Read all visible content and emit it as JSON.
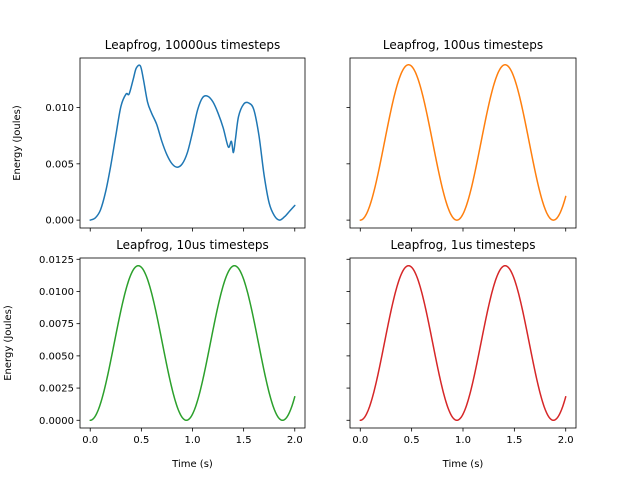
{
  "figure": {
    "background": "#ffffff"
  },
  "chart_data": [
    {
      "type": "line",
      "title": "Leapfrog, 10000us timesteps",
      "xlabel": "",
      "ylabel": "Energy (Joules)",
      "xlim": [
        -0.1,
        2.1
      ],
      "ylim": [
        -0.0007,
        0.0144
      ],
      "xticks": [
        0.0,
        0.5,
        1.0,
        1.5,
        2.0
      ],
      "xtick_labels": [],
      "yticks": [
        0.0,
        0.005,
        0.01
      ],
      "ytick_labels": [
        "0.000",
        "0.005",
        "0.010"
      ],
      "color": "#1f77b4",
      "x": [
        0.0,
        0.05,
        0.1,
        0.15,
        0.2,
        0.25,
        0.3,
        0.35,
        0.38,
        0.42,
        0.45,
        0.49,
        0.52,
        0.56,
        0.6,
        0.65,
        0.7,
        0.75,
        0.8,
        0.85,
        0.9,
        0.95,
        1.0,
        1.05,
        1.1,
        1.15,
        1.2,
        1.25,
        1.3,
        1.35,
        1.38,
        1.4,
        1.42,
        1.45,
        1.5,
        1.55,
        1.6,
        1.65,
        1.7,
        1.75,
        1.8,
        1.85,
        1.9,
        1.95,
        2.0
      ],
      "y": [
        0.0,
        0.0002,
        0.0009,
        0.0025,
        0.0048,
        0.0075,
        0.0101,
        0.0112,
        0.0112,
        0.0125,
        0.0135,
        0.0137,
        0.0125,
        0.0105,
        0.0095,
        0.0085,
        0.007,
        0.0058,
        0.005,
        0.0047,
        0.005,
        0.006,
        0.0078,
        0.0098,
        0.0109,
        0.011,
        0.0105,
        0.0095,
        0.0082,
        0.0065,
        0.007,
        0.006,
        0.0072,
        0.0092,
        0.0103,
        0.0104,
        0.0098,
        0.0075,
        0.004,
        0.0015,
        0.0004,
        0.0,
        0.0003,
        0.0008,
        0.0013
      ]
    },
    {
      "type": "line",
      "title": "Leapfrog, 100us timesteps",
      "xlabel": "",
      "ylabel": "",
      "xlim": [
        -0.1,
        2.1
      ],
      "ylim": [
        -0.0007,
        0.0144
      ],
      "xticks": [
        0.0,
        0.5,
        1.0,
        1.5,
        2.0
      ],
      "xtick_labels": [],
      "yticks": [
        0.0,
        0.005,
        0.01
      ],
      "ytick_labels": [],
      "color": "#ff7f0e",
      "amplitude": 0.0138,
      "period": 0.94,
      "x_end": 2.0
    },
    {
      "type": "line",
      "title": "Leapfrog, 10us timesteps",
      "xlabel": "Time (s)",
      "ylabel": "Energy (Joules)",
      "xlim": [
        -0.1,
        2.1
      ],
      "ylim": [
        -0.0006,
        0.0126
      ],
      "xticks": [
        0.0,
        0.5,
        1.0,
        1.5,
        2.0
      ],
      "xtick_labels": [
        "0.0",
        "0.5",
        "1.0",
        "1.5",
        "2.0"
      ],
      "yticks": [
        0.0,
        0.0025,
        0.005,
        0.0075,
        0.01,
        0.0125
      ],
      "ytick_labels": [
        "0.0000",
        "0.0025",
        "0.0050",
        "0.0075",
        "0.0100",
        "0.0125"
      ],
      "color": "#2ca02c",
      "amplitude": 0.012,
      "period": 0.94,
      "x_end": 2.0
    },
    {
      "type": "line",
      "title": "Leapfrog, 1us timesteps",
      "xlabel": "Time (s)",
      "ylabel": "",
      "xlim": [
        -0.1,
        2.1
      ],
      "ylim": [
        -0.0006,
        0.0126
      ],
      "xticks": [
        0.0,
        0.5,
        1.0,
        1.5,
        2.0
      ],
      "xtick_labels": [
        "0.0",
        "0.5",
        "1.0",
        "1.5",
        "2.0"
      ],
      "yticks": [
        0.0,
        0.0025,
        0.005,
        0.0075,
        0.01,
        0.0125
      ],
      "ytick_labels": [],
      "color": "#d62728",
      "amplitude": 0.012,
      "period": 0.94,
      "x_end": 2.0
    }
  ]
}
